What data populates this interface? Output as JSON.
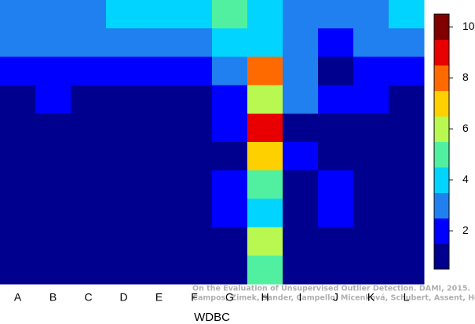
{
  "chart_data": {
    "type": "heatmap",
    "x_categories": [
      "A",
      "B",
      "C",
      "D",
      "E",
      "F",
      "G",
      "H",
      "I",
      "J",
      "K",
      "L"
    ],
    "xlabel": "WDBC",
    "z": [
      [
        3,
        3,
        3,
        4,
        4,
        4,
        5,
        4,
        3,
        3,
        3,
        4
      ],
      [
        3,
        3,
        3,
        3,
        3,
        3,
        4,
        4,
        3,
        2,
        3,
        3
      ],
      [
        2,
        2,
        2,
        2,
        2,
        2,
        3,
        8,
        3,
        1,
        2,
        2
      ],
      [
        1,
        2,
        1,
        1,
        1,
        1,
        2,
        6,
        3,
        2,
        2,
        1
      ],
      [
        1,
        1,
        1,
        1,
        1,
        1,
        2,
        9,
        1,
        1,
        1,
        1
      ],
      [
        1,
        1,
        1,
        1,
        1,
        1,
        1,
        7,
        2,
        1,
        1,
        1
      ],
      [
        1,
        1,
        1,
        1,
        1,
        1,
        2,
        5,
        1,
        2,
        1,
        1
      ],
      [
        1,
        1,
        1,
        1,
        1,
        1,
        2,
        4,
        1,
        2,
        1,
        1
      ],
      [
        1,
        1,
        1,
        1,
        1,
        1,
        1,
        6,
        1,
        1,
        1,
        1
      ],
      [
        1,
        1,
        1,
        1,
        1,
        1,
        1,
        5,
        1,
        1,
        1,
        1
      ]
    ],
    "colors": [
      "#00008f",
      "#0000ff",
      "#2080f0",
      "#00d4ff",
      "#50f0a0",
      "#b8f850",
      "#ffd000",
      "#ff6a00",
      "#e80000",
      "#800000"
    ],
    "zlim": [
      0.5,
      10.5
    ],
    "zticks": [
      2,
      4,
      6,
      8,
      10
    ],
    "annotation": [
      "On the Evaluation of Unsupervised Outlier Detection. DAMI, 2015.",
      "Campos, Zimek, Sander, Campello, Micenková, Schubert, Assent, Houle"
    ]
  }
}
